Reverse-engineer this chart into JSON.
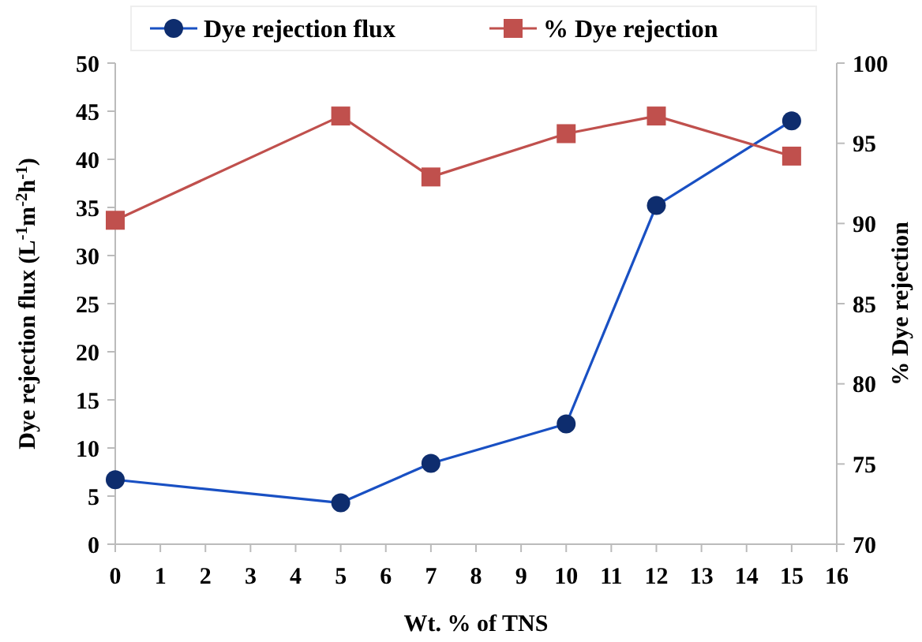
{
  "chart_data": {
    "type": "line",
    "xlabel": "Wt. % of TNS",
    "ylabel": "Dye rejection flux (L$^{-1}$m$^{-2}$h$^{-1}$)",
    "y2label": "% Dye rejection",
    "x": [
      0,
      5,
      7,
      10,
      12,
      15
    ],
    "series": [
      {
        "name": "Dye rejection flux",
        "color": "#0e2d6e",
        "marker": "circle",
        "values": [
          6.7,
          4.3,
          8.4,
          12.5,
          35.2,
          44
        ]
      },
      {
        "name": "% Dye rejection",
        "color": "#c0504d",
        "marker": "square",
        "axis": "y2",
        "values": [
          90.2,
          96.7,
          92.9,
          95.6,
          96.7,
          94.2
        ]
      }
    ],
    "xlim": [
      0,
      16
    ],
    "xticks": [
      0,
      1,
      2,
      3,
      4,
      5,
      6,
      7,
      8,
      9,
      10,
      11,
      12,
      13,
      14,
      15,
      16
    ],
    "ylim": [
      0,
      50
    ],
    "yticks": [
      0,
      5,
      10,
      15,
      20,
      25,
      30,
      35,
      40,
      45,
      50
    ],
    "y2lim": [
      70,
      100
    ],
    "y2ticks": [
      70,
      75,
      80,
      85,
      90,
      95,
      100
    ],
    "grid": false,
    "legend": "top",
    "line_style": "solid"
  }
}
